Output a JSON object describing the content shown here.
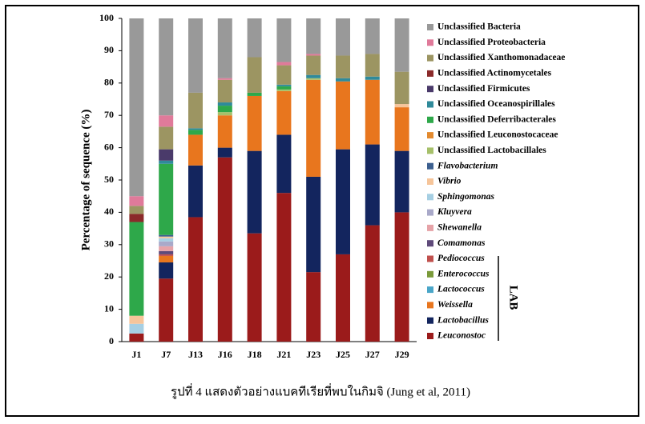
{
  "chart_data": {
    "type": "stacked-bar",
    "y_label": "Percentage of sequence (%)",
    "caption": "รูปที่ 4 แสดงตัวอย่างแบคทีเรียที่พบในกิมจิ (Jung et al, 2011)",
    "bracket_label": "LAB",
    "categories": [
      "J1",
      "J7",
      "J13",
      "J16",
      "J18",
      "J21",
      "J23",
      "J25",
      "J27",
      "J29"
    ],
    "ylim": [
      0,
      100
    ],
    "yticks": [
      0,
      10,
      20,
      30,
      40,
      50,
      60,
      70,
      80,
      90,
      100
    ],
    "series": [
      {
        "name": "Leuconostoc",
        "italic": true,
        "color": "#9b1b1b",
        "values": [
          2.5,
          19.5,
          38.5,
          57,
          33.5,
          46,
          21.5,
          27,
          36,
          40
        ]
      },
      {
        "name": "Lactobacillus",
        "italic": true,
        "color": "#13255e",
        "values": [
          0,
          5,
          16,
          3,
          25.5,
          18,
          29.5,
          32.5,
          25,
          19
        ]
      },
      {
        "name": "Weissella",
        "italic": true,
        "color": "#e8761e",
        "values": [
          0,
          2,
          9.5,
          10,
          17,
          13.5,
          30,
          21,
          20,
          13.5
        ]
      },
      {
        "name": "Lactococcus",
        "italic": true,
        "color": "#4aa6c8",
        "values": [
          0,
          0,
          0,
          0,
          0,
          0,
          0,
          0,
          0,
          0
        ]
      },
      {
        "name": "Enterococcus",
        "italic": true,
        "color": "#7a9a3a",
        "values": [
          0,
          0,
          0,
          0,
          0,
          0,
          0,
          0,
          0,
          0
        ]
      },
      {
        "name": "Pediococcus",
        "italic": true,
        "color": "#c0504d",
        "values": [
          0,
          0.5,
          0,
          0,
          0,
          0,
          0,
          0,
          0,
          0
        ]
      },
      {
        "name": "Comamonas",
        "italic": true,
        "color": "#5f4a7a",
        "values": [
          0,
          1,
          0,
          0,
          0,
          0,
          0,
          0,
          0,
          0
        ]
      },
      {
        "name": "Shewanella",
        "italic": true,
        "color": "#e6a3a8",
        "values": [
          0,
          1.5,
          0,
          0,
          0,
          0,
          0,
          0,
          0,
          0
        ]
      },
      {
        "name": "Kluyvera",
        "italic": true,
        "color": "#a9a9c9",
        "values": [
          0,
          1.5,
          0,
          0,
          0,
          0,
          0,
          0,
          0,
          0
        ]
      },
      {
        "name": "Sphingomonas",
        "italic": true,
        "color": "#a6cfe3",
        "values": [
          3,
          1,
          0,
          0,
          0,
          0,
          0,
          0,
          0,
          0
        ]
      },
      {
        "name": "Vibrio",
        "italic": true,
        "color": "#f6c59a",
        "values": [
          2.5,
          0.5,
          0,
          0,
          0,
          0,
          0,
          0,
          0,
          1
        ]
      },
      {
        "name": "Flavobacterium",
        "italic": true,
        "color": "#3c5f8f",
        "values": [
          0,
          0.5,
          0,
          0,
          0,
          0,
          0,
          0,
          0,
          0
        ]
      },
      {
        "name": "Unclassified Lactobacillales",
        "italic": false,
        "color": "#a6c06a",
        "values": [
          0,
          0,
          0,
          1,
          0,
          0.5,
          0.5,
          0,
          0,
          0
        ]
      },
      {
        "name": "Unclassified Leuconostocaceae",
        "italic": false,
        "color": "#e38a2e",
        "values": [
          0,
          0,
          0,
          0,
          0,
          0,
          0,
          0,
          0,
          0
        ]
      },
      {
        "name": "Unclassified Deferribacterales",
        "italic": false,
        "color": "#2ea84a",
        "values": [
          29,
          22,
          1.5,
          2,
          1,
          1,
          0,
          0,
          0,
          0
        ]
      },
      {
        "name": "Unclassified Oceanospirillales",
        "italic": false,
        "color": "#2f8a9a",
        "values": [
          0,
          1,
          0.5,
          1,
          0,
          0.5,
          1,
          1,
          1,
          0
        ]
      },
      {
        "name": "Unclassified Firmicutes",
        "italic": false,
        "color": "#4a3a6a",
        "values": [
          0,
          3.5,
          0,
          0,
          0,
          0,
          0,
          0,
          0,
          0
        ]
      },
      {
        "name": "Unclassified Actinomycetales",
        "italic": false,
        "color": "#8b2a2a",
        "values": [
          2.5,
          0,
          0,
          0,
          0,
          0,
          0,
          0,
          0,
          0
        ]
      },
      {
        "name": "Unclassified Xanthomonadaceae",
        "italic": false,
        "color": "#9c9562",
        "values": [
          2.5,
          7,
          11,
          7,
          11,
          6,
          6,
          7,
          7,
          10
        ]
      },
      {
        "name": "Unclassified Proteobacteria",
        "italic": false,
        "color": "#e07a9a",
        "values": [
          3,
          3.5,
          0,
          0.5,
          0,
          1,
          0.5,
          0,
          0,
          0
        ]
      },
      {
        "name": "Unclassified Bacteria",
        "italic": false,
        "color": "#999999",
        "values": [
          55,
          30,
          23,
          18.5,
          12,
          13.5,
          11,
          11.5,
          11,
          16.5
        ]
      }
    ]
  }
}
